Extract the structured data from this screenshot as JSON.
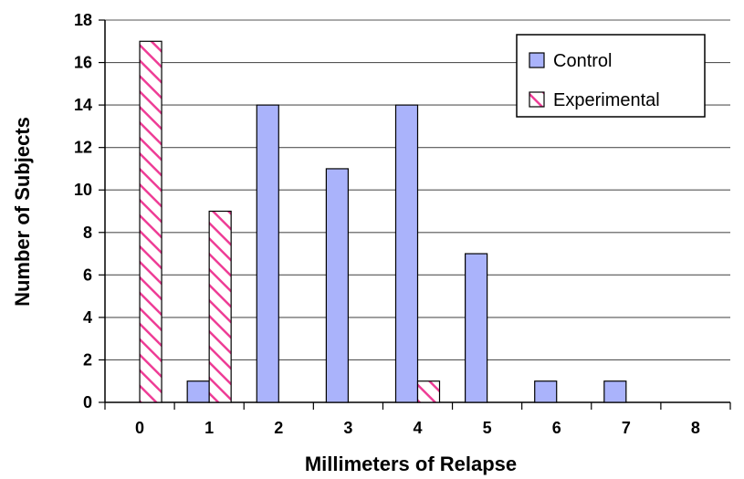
{
  "chart_data": {
    "type": "bar",
    "title": "",
    "xlabel": "Millimeters of Relapse",
    "ylabel": "Number of Subjects",
    "categories": [
      "0",
      "1",
      "2",
      "3",
      "4",
      "5",
      "6",
      "7",
      "8"
    ],
    "series": [
      {
        "name": "Control",
        "values": [
          0,
          1,
          14,
          11,
          14,
          7,
          1,
          1,
          0
        ],
        "color": "#aab3fb",
        "pattern": "solid"
      },
      {
        "name": "Experimental",
        "values": [
          17,
          9,
          0,
          0,
          1,
          0,
          0,
          0,
          0
        ],
        "color": "#ee3d96",
        "pattern": "diagonal-hatch"
      }
    ],
    "ylim": [
      0,
      18
    ],
    "yticks": [
      0,
      2,
      4,
      6,
      8,
      10,
      12,
      14,
      16,
      18
    ],
    "grid": true,
    "legend": "top-right"
  }
}
